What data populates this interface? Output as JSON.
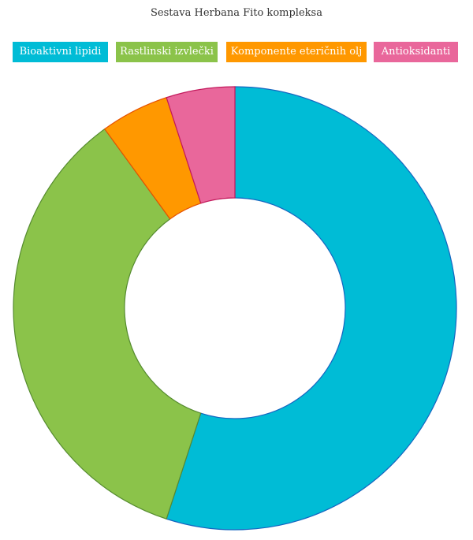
{
  "chart_data": {
    "type": "pie",
    "title": "Sestava Herbana Fito kompleksa",
    "donut": true,
    "legend_position": "top",
    "categories": [
      "Bioaktivni lipidi",
      "Rastlinski izvlečki",
      "Komponente eteričnih olj",
      "Antioksidanti"
    ],
    "values": [
      55,
      35,
      5,
      5
    ],
    "colors": [
      "#00bcd6",
      "#8bc34a",
      "#ff9800",
      "#e9679b"
    ],
    "stroke_colors": [
      "#1565c0",
      "#558b2f",
      "#e65100",
      "#c2185b"
    ]
  }
}
